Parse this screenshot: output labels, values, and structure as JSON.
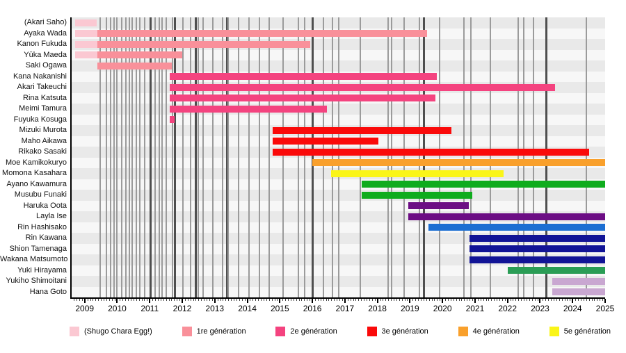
{
  "chart_data": {
    "type": "timeline-gantt",
    "title": "",
    "xlim": [
      2008.6,
      2025.0
    ],
    "axis_years": [
      2009,
      2010,
      2011,
      2012,
      2013,
      2014,
      2015,
      2016,
      2017,
      2018,
      2019,
      2020,
      2021,
      2022,
      2023,
      2024,
      2025
    ],
    "grid": "vertical-event-lines",
    "legend_position": "bottom",
    "palette": {
      "egg": "#fbc8d2",
      "gen1": "#f9909a",
      "gen2": "#f4437f",
      "gen3": "#fa0a0a",
      "gen4": "#f9a02c",
      "gen5": "#faf518",
      "gen6": "#0fac1d",
      "gen7": "#6c0d84",
      "gen8": "#1c6ed2",
      "gen9": "#121496",
      "gen10": "#2a9d55",
      "gen11": "#c9a7d1"
    },
    "legend": [
      {
        "key": "egg",
        "label": "(Shugo Chara Egg!)"
      },
      {
        "key": "gen1",
        "label": "1re génération"
      },
      {
        "key": "gen2",
        "label": "2e génération"
      },
      {
        "key": "gen3",
        "label": "3e génération"
      },
      {
        "key": "gen4",
        "label": "4e génération"
      },
      {
        "key": "gen5",
        "label": "5e génération"
      }
    ],
    "members": [
      {
        "name": "(Akari Saho)",
        "segments": [
          {
            "g": "egg",
            "s": 2008.7,
            "e": 2009.38
          }
        ]
      },
      {
        "name": "Ayaka Wada",
        "segments": [
          {
            "g": "egg",
            "s": 2008.7,
            "e": 2009.4
          },
          {
            "g": "gen1",
            "s": 2009.4,
            "e": 2019.52
          }
        ]
      },
      {
        "name": "Kanon Fukuda",
        "segments": [
          {
            "g": "egg",
            "s": 2008.7,
            "e": 2009.4
          },
          {
            "g": "gen1",
            "s": 2009.4,
            "e": 2015.93
          }
        ]
      },
      {
        "name": "Yūka Maeda",
        "segments": [
          {
            "g": "egg",
            "s": 2008.7,
            "e": 2009.4
          },
          {
            "g": "gen1",
            "s": 2009.4,
            "e": 2012.01
          }
        ]
      },
      {
        "name": "Saki Ogawa",
        "segments": [
          {
            "g": "gen1",
            "s": 2009.4,
            "e": 2011.67
          }
        ]
      },
      {
        "name": "Kana Nakanishi",
        "segments": [
          {
            "g": "gen2",
            "s": 2011.62,
            "e": 2019.82
          }
        ]
      },
      {
        "name": "Akari Takeuchi",
        "segments": [
          {
            "g": "gen2",
            "s": 2011.62,
            "e": 2023.47
          }
        ]
      },
      {
        "name": "Rina Katsuta",
        "segments": [
          {
            "g": "gen2",
            "s": 2011.62,
            "e": 2019.78
          }
        ]
      },
      {
        "name": "Meimi Tamura",
        "segments": [
          {
            "g": "gen2",
            "s": 2011.62,
            "e": 2016.44
          }
        ]
      },
      {
        "name": "Fuyuka Kosuga",
        "segments": [
          {
            "g": "gen2",
            "s": 2011.62,
            "e": 2011.76
          }
        ]
      },
      {
        "name": "Mizuki Murota",
        "segments": [
          {
            "g": "gen3",
            "s": 2014.79,
            "e": 2020.27
          }
        ]
      },
      {
        "name": "Maho Aikawa",
        "segments": [
          {
            "g": "gen3",
            "s": 2014.79,
            "e": 2018.02
          }
        ]
      },
      {
        "name": "Rikako Sasaki",
        "segments": [
          {
            "g": "gen3",
            "s": 2014.79,
            "e": 2024.5
          }
        ]
      },
      {
        "name": "Moe Kamikokuryo",
        "segments": [
          {
            "g": "gen4",
            "s": 2015.99,
            "e": 2025.0
          }
        ]
      },
      {
        "name": "Momona Kasahara",
        "segments": [
          {
            "g": "gen5",
            "s": 2016.57,
            "e": 2021.87
          }
        ]
      },
      {
        "name": "Ayano Kawamura",
        "segments": [
          {
            "g": "gen6",
            "s": 2017.51,
            "e": 2025.0
          }
        ]
      },
      {
        "name": "Musubu Funaki",
        "segments": [
          {
            "g": "gen6",
            "s": 2017.51,
            "e": 2020.92
          }
        ]
      },
      {
        "name": "Haruka Oota",
        "segments": [
          {
            "g": "gen7",
            "s": 2018.94,
            "e": 2020.8
          }
        ]
      },
      {
        "name": "Layla Ise",
        "segments": [
          {
            "g": "gen7",
            "s": 2018.94,
            "e": 2025.0
          }
        ]
      },
      {
        "name": "Rin Hashisako",
        "segments": [
          {
            "g": "gen8",
            "s": 2019.56,
            "e": 2025.0
          }
        ]
      },
      {
        "name": "Rin Kawana",
        "segments": [
          {
            "g": "gen9",
            "s": 2020.84,
            "e": 2025.0
          }
        ]
      },
      {
        "name": "Shion Tamenaga",
        "segments": [
          {
            "g": "gen9",
            "s": 2020.84,
            "e": 2025.0
          }
        ]
      },
      {
        "name": "Wakana Matsumoto",
        "segments": [
          {
            "g": "gen9",
            "s": 2020.84,
            "e": 2025.0
          }
        ]
      },
      {
        "name": "Yuki Hirayama",
        "segments": [
          {
            "g": "gen10",
            "s": 2022.0,
            "e": 2025.0
          }
        ]
      },
      {
        "name": "Yukiho Shimoitani",
        "segments": [
          {
            "g": "gen11",
            "s": 2023.37,
            "e": 2025.0
          }
        ]
      },
      {
        "name": "Hana Goto",
        "segments": [
          {
            "g": "gen11",
            "s": 2023.37,
            "e": 2025.0
          }
        ]
      }
    ],
    "event_lines": [
      [
        2009.47,
        0
      ],
      [
        2009.66,
        0
      ],
      [
        2009.79,
        0
      ],
      [
        2009.9,
        0
      ],
      [
        2010.0,
        0
      ],
      [
        2010.15,
        0
      ],
      [
        2010.26,
        0
      ],
      [
        2010.37,
        0
      ],
      [
        2010.47,
        0
      ],
      [
        2010.58,
        0
      ],
      [
        2010.69,
        0
      ],
      [
        2010.84,
        0
      ],
      [
        2011.01,
        1
      ],
      [
        2011.16,
        0
      ],
      [
        2011.29,
        0
      ],
      [
        2011.39,
        0
      ],
      [
        2011.5,
        0
      ],
      [
        2011.69,
        0
      ],
      [
        2011.76,
        1
      ],
      [
        2012.03,
        0
      ],
      [
        2012.25,
        0
      ],
      [
        2012.4,
        1
      ],
      [
        2012.5,
        0
      ],
      [
        2012.65,
        0
      ],
      [
        2012.95,
        0
      ],
      [
        2013.23,
        0
      ],
      [
        2013.36,
        1
      ],
      [
        2013.42,
        0
      ],
      [
        2013.74,
        0
      ],
      [
        2014.06,
        0
      ],
      [
        2014.38,
        0
      ],
      [
        2014.68,
        0
      ],
      [
        2015.11,
        0
      ],
      [
        2015.56,
        0
      ],
      [
        2015.77,
        0
      ],
      [
        2015.99,
        1
      ],
      [
        2016.35,
        0
      ],
      [
        2016.61,
        0
      ],
      [
        2016.82,
        0
      ],
      [
        2017.48,
        0
      ],
      [
        2018.32,
        0
      ],
      [
        2018.44,
        0
      ],
      [
        2018.81,
        0
      ],
      [
        2019.3,
        0
      ],
      [
        2019.41,
        1
      ],
      [
        2019.92,
        0
      ],
      [
        2020.67,
        0
      ],
      [
        2020.88,
        0
      ],
      [
        2021.48,
        0
      ],
      [
        2022.33,
        0
      ],
      [
        2022.5,
        0
      ],
      [
        2022.8,
        0
      ],
      [
        2023.19,
        1
      ],
      [
        2024.43,
        0
      ]
    ]
  }
}
